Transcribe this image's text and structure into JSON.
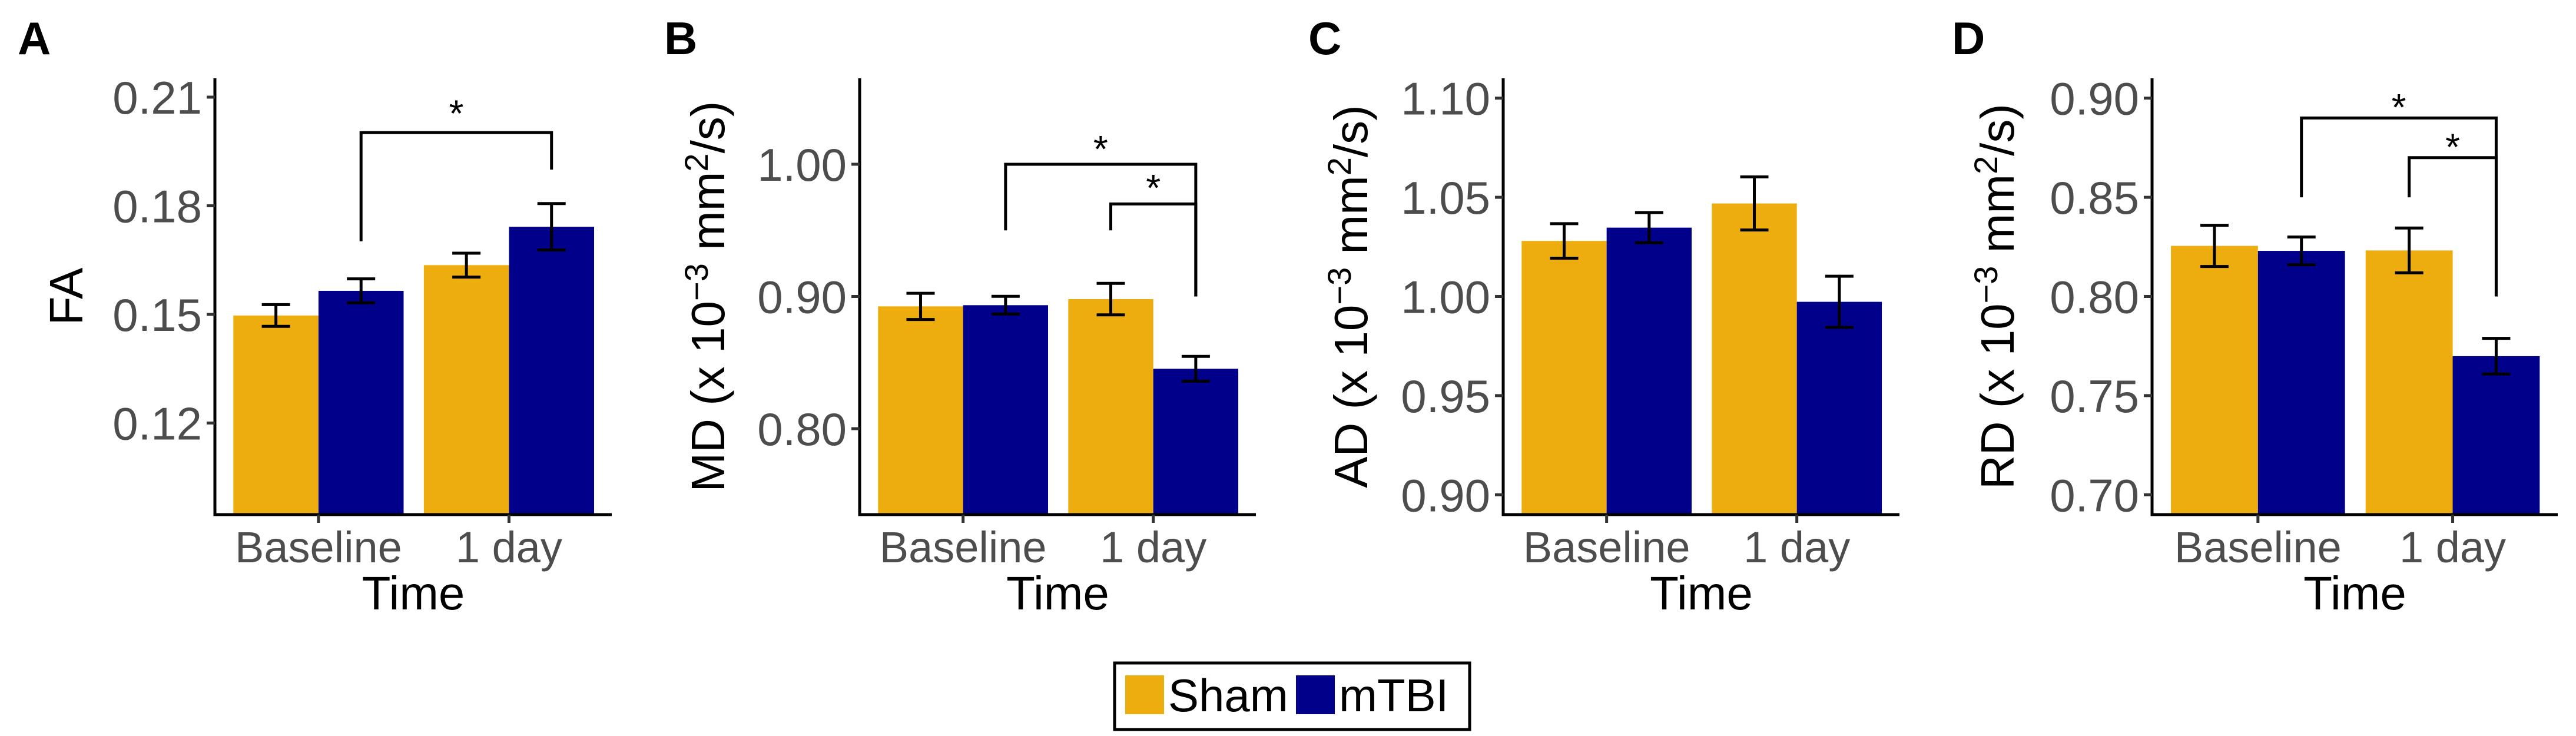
{
  "figure": {
    "legend": {
      "items": [
        {
          "label": "Sham",
          "color": "#EEAD0E"
        },
        {
          "label": "mTBI",
          "color": "#00008B"
        }
      ]
    },
    "errorbar_color": "#000000",
    "tick_text_color": "#4D4D4D"
  },
  "chart_data": [
    {
      "panel": "A",
      "type": "bar",
      "title": "",
      "xlabel": "Time",
      "ylabel": "FA",
      "ylabel_parts": [
        {
          "text": "FA"
        }
      ],
      "categories": [
        "Baseline",
        "1 day"
      ],
      "series": [
        {
          "name": "Sham",
          "values": [
            0.1497,
            0.1636
          ],
          "errors": [
            0.003,
            0.0033
          ]
        },
        {
          "name": "mTBI",
          "values": [
            0.1565,
            0.1742
          ],
          "errors": [
            0.0033,
            0.0064
          ]
        }
      ],
      "yticks": [
        0.12,
        0.15,
        0.18,
        0.21
      ],
      "ytick_labels": [
        "0.12",
        "0.15",
        "0.18",
        "0.21"
      ],
      "ylim": [
        0.0947,
        0.2152
      ],
      "grid": false,
      "significance": [
        {
          "from": [
            "Baseline",
            "mTBI"
          ],
          "to": [
            "1 day",
            "mTBI"
          ],
          "y": 0.2002,
          "left_end": 0.1702,
          "right_end": 0.19,
          "label": "*",
          "label_y": 0.2075
        }
      ]
    },
    {
      "panel": "B",
      "type": "bar",
      "title": "",
      "xlabel": "Time",
      "ylabel": "MD (x 10^-3 mm^2/s)",
      "ylabel_parts": [
        {
          "text": "MD (x 10"
        },
        {
          "text": "−3",
          "sup": true
        },
        {
          "text": " mm"
        },
        {
          "text": "2",
          "sup": true
        },
        {
          "text": "/s)"
        }
      ],
      "categories": [
        "Baseline",
        "1 day"
      ],
      "series": [
        {
          "name": "Sham",
          "values": [
            0.8925,
            0.898
          ],
          "errors": [
            0.0099,
            0.0119
          ]
        },
        {
          "name": "mTBI",
          "values": [
            0.8934,
            0.8453
          ],
          "errors": [
            0.0067,
            0.0094
          ]
        }
      ],
      "yticks": [
        0.8,
        0.9,
        1.0
      ],
      "ytick_labels": [
        "0.80",
        "0.90",
        "1.00"
      ],
      "ylim": [
        0.735,
        1.065
      ],
      "grid": false,
      "significance": [
        {
          "from": [
            "Baseline",
            "mTBI"
          ],
          "to": [
            "1 day",
            "mTBI"
          ],
          "y": 1.0,
          "left_end": 0.95,
          "right_end": 0.9,
          "label": "*",
          "label_y": 1.017
        },
        {
          "from": [
            "1 day",
            "Sham"
          ],
          "to": [
            "1 day",
            "mTBI"
          ],
          "y": 0.97,
          "left_end": 0.95,
          "right_end": 0.9,
          "label": "*",
          "label_y": 0.9875
        }
      ]
    },
    {
      "panel": "C",
      "type": "bar",
      "title": "",
      "xlabel": "Time",
      "ylabel": "AD (x 10^-3 mm^2/s)",
      "ylabel_parts": [
        {
          "text": "AD (x 10"
        },
        {
          "text": "−3",
          "sup": true
        },
        {
          "text": " mm"
        },
        {
          "text": "2",
          "sup": true
        },
        {
          "text": "/s)"
        }
      ],
      "categories": [
        "Baseline",
        "1 day"
      ],
      "series": [
        {
          "name": "Sham",
          "values": [
            1.028,
            1.0469
          ],
          "errors": [
            0.0087,
            0.0134
          ]
        },
        {
          "name": "mTBI",
          "values": [
            1.0347,
            0.9973
          ],
          "errors": [
            0.0076,
            0.0129
          ]
        }
      ],
      "yticks": [
        0.9,
        0.95,
        1.0,
        1.05,
        1.1
      ],
      "ytick_labels": [
        "0.90",
        "0.95",
        "1.00",
        "1.05",
        "1.10"
      ],
      "ylim": [
        0.89,
        1.11
      ],
      "grid": false,
      "significance": []
    },
    {
      "panel": "D",
      "type": "bar",
      "title": "",
      "xlabel": "Time",
      "ylabel": "RD (x 10^-3 mm^2/s)",
      "ylabel_parts": [
        {
          "text": "RD (x 10"
        },
        {
          "text": "−3",
          "sup": true
        },
        {
          "text": " mm"
        },
        {
          "text": "2",
          "sup": true
        },
        {
          "text": "/s)"
        }
      ],
      "categories": [
        "Baseline",
        "1 day"
      ],
      "series": [
        {
          "name": "Sham",
          "values": [
            0.8255,
            0.8232
          ],
          "errors": [
            0.0104,
            0.0113
          ]
        },
        {
          "name": "mTBI",
          "values": [
            0.823,
            0.7699
          ],
          "errors": [
            0.007,
            0.009
          ]
        }
      ],
      "yticks": [
        0.7,
        0.75,
        0.8,
        0.85,
        0.9
      ],
      "ytick_labels": [
        "0.70",
        "0.75",
        "0.80",
        "0.85",
        "0.90"
      ],
      "ylim": [
        0.69,
        0.91
      ],
      "grid": false,
      "significance": [
        {
          "from": [
            "Baseline",
            "mTBI"
          ],
          "to": [
            "1 day",
            "mTBI"
          ],
          "y": 0.89,
          "left_end": 0.85,
          "right_end": 0.8,
          "label": "*",
          "label_y": 0.899
        },
        {
          "from": [
            "1 day",
            "Sham"
          ],
          "to": [
            "1 day",
            "mTBI"
          ],
          "y": 0.87,
          "left_end": 0.85,
          "right_end": 0.8,
          "label": "*",
          "label_y": 0.879
        }
      ]
    }
  ]
}
